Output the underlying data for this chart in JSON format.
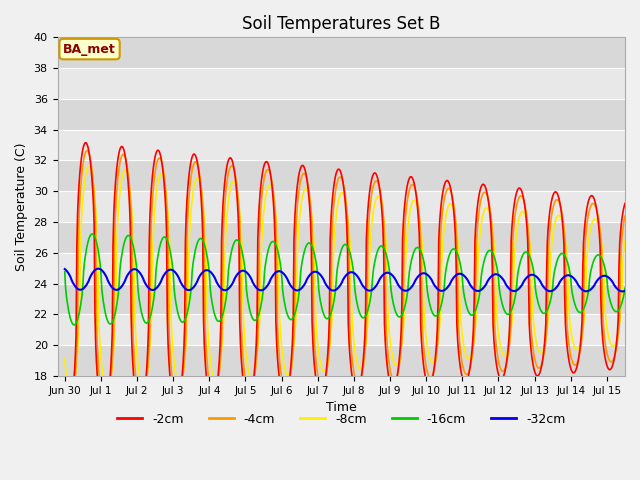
{
  "title": "Soil Temperatures Set B",
  "xlabel": "Time",
  "ylabel": "Soil Temperature (C)",
  "ylim": [
    18,
    40
  ],
  "yticks": [
    18,
    20,
    22,
    24,
    26,
    28,
    30,
    32,
    34,
    36,
    38,
    40
  ],
  "annotation": "BA_met",
  "colors": {
    "-2cm": "#ff0000",
    "-4cm": "#ff9900",
    "-8cm": "#ffee00",
    "-16cm": "#00cc00",
    "-32cm": "#0000ee"
  },
  "legend_labels": [
    "-2cm",
    "-4cm",
    "-8cm",
    "-16cm",
    "-32cm"
  ],
  "fig_bg_color": "#f0f0f0",
  "plot_bg_color": "#e8e8e8",
  "band_colors": [
    "#d8d8d8",
    "#e8e8e8"
  ]
}
